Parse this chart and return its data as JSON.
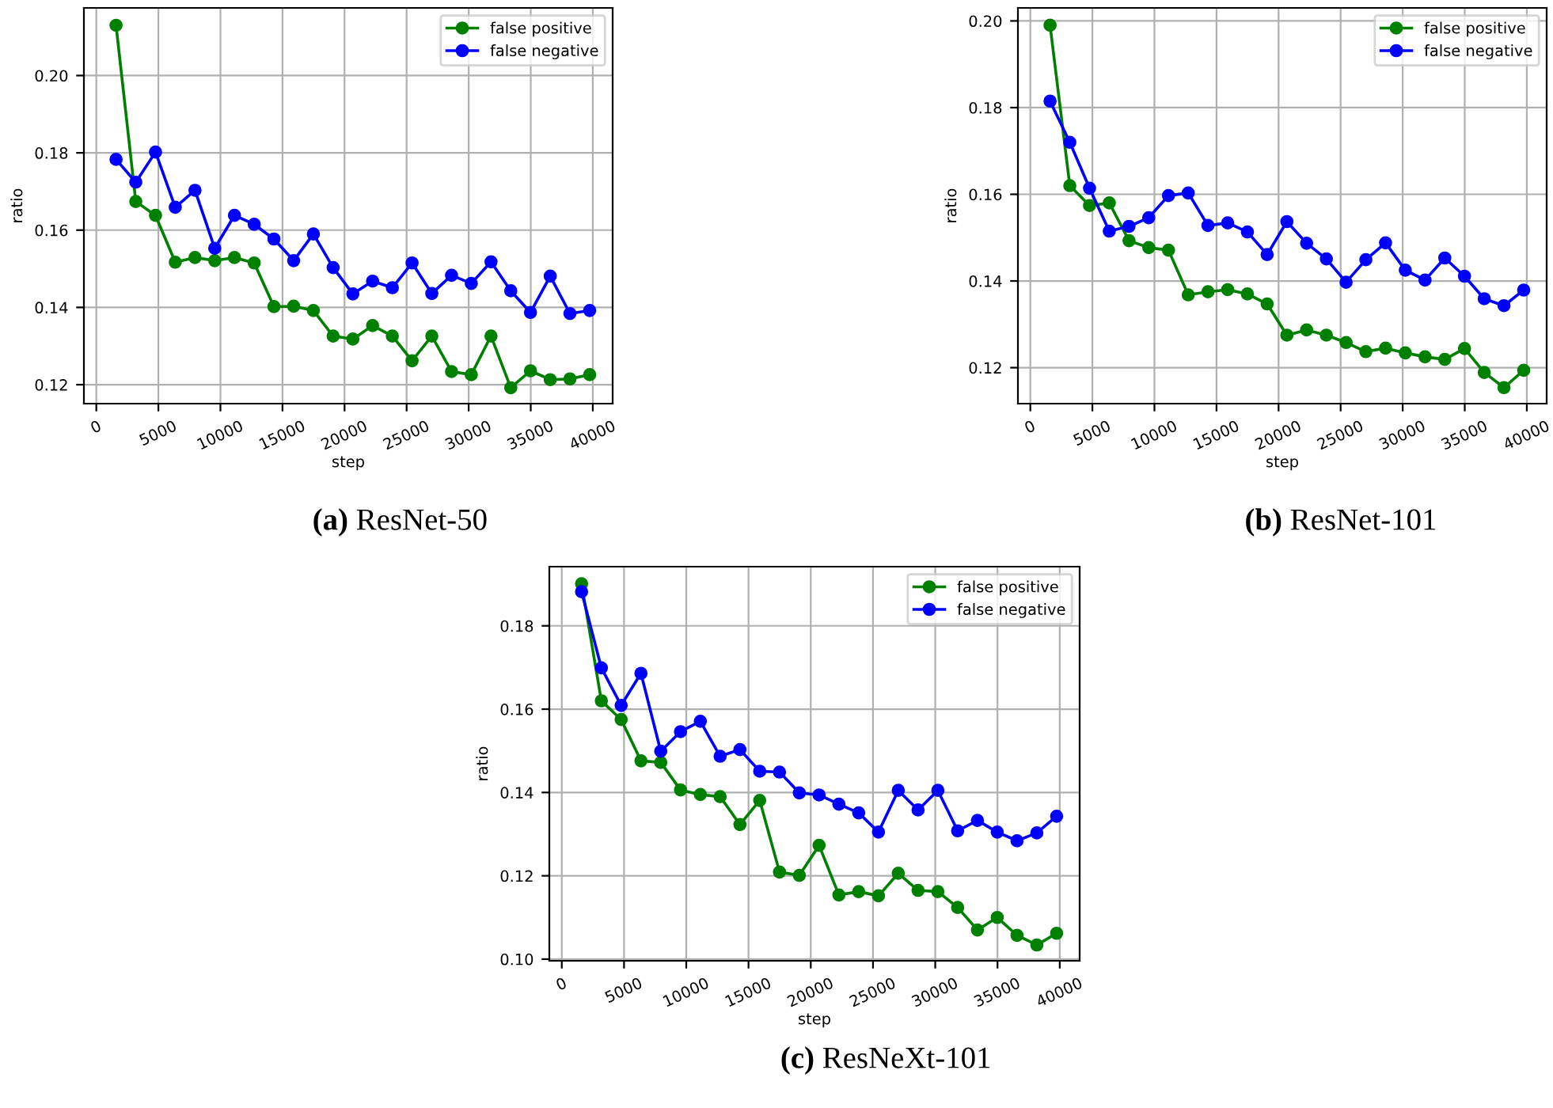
{
  "chart_data": [
    {
      "type": "line",
      "title": "(a) ResNet-50",
      "xlabel": "step",
      "ylabel": "ratio",
      "x": [
        1590,
        3180,
        4770,
        6360,
        7950,
        9540,
        11130,
        12720,
        14310,
        15900,
        17490,
        19080,
        20670,
        22260,
        23850,
        25440,
        27030,
        28620,
        30210,
        31800,
        33390,
        34980,
        36570,
        38160,
        39750
      ],
      "xlim": [
        -1000,
        41600
      ],
      "xticks": [
        0,
        5000,
        10000,
        15000,
        20000,
        25000,
        30000,
        35000,
        40000
      ],
      "ylim": [
        0.1151,
        0.2175
      ],
      "yticks": [
        {
          "value": 0.12,
          "label": "0.12"
        },
        {
          "value": 0.14,
          "label": "0.14"
        },
        {
          "value": 0.16,
          "label": "0.16"
        },
        {
          "value": 0.18,
          "label": "0.18"
        },
        {
          "value": 0.2,
          "label": "0.20"
        }
      ],
      "grid": true,
      "legend": "top right",
      "marker": "circle",
      "line_style": "solid",
      "series": [
        {
          "name": "false positive",
          "color": "#008000",
          "values": [
            0.213,
            0.1674,
            0.1638,
            0.1517,
            0.1529,
            0.1521,
            0.1529,
            0.1515,
            0.1402,
            0.1403,
            0.1392,
            0.1326,
            0.1318,
            0.1353,
            0.1326,
            0.1262,
            0.1326,
            0.1234,
            0.1226,
            0.1326,
            0.1192,
            0.1236,
            0.1213,
            0.1215,
            0.1226
          ]
        },
        {
          "name": "false negative",
          "color": "#0000ff",
          "values": [
            0.1783,
            0.1724,
            0.1802,
            0.1659,
            0.1703,
            0.1553,
            0.1638,
            0.1615,
            0.1577,
            0.1521,
            0.159,
            0.1503,
            0.1435,
            0.1468,
            0.1451,
            0.1515,
            0.1436,
            0.1483,
            0.1462,
            0.1518,
            0.1443,
            0.1387,
            0.1481,
            0.1384,
            0.1392
          ]
        }
      ]
    },
    {
      "type": "line",
      "title": "(b) ResNet-101",
      "xlabel": "step",
      "ylabel": "ratio",
      "x": [
        1590,
        3180,
        4770,
        6360,
        7950,
        9540,
        11130,
        12720,
        14310,
        15900,
        17490,
        19080,
        20670,
        22260,
        23850,
        25440,
        27030,
        28620,
        30210,
        31800,
        33390,
        34980,
        36570,
        38160,
        39750
      ],
      "xlim": [
        -1000,
        41600
      ],
      "xticks": [
        0,
        5000,
        10000,
        15000,
        20000,
        25000,
        30000,
        35000,
        40000
      ],
      "ylim": [
        0.1117,
        0.203
      ],
      "yticks": [
        {
          "value": 0.12,
          "label": "0.12"
        },
        {
          "value": 0.14,
          "label": "0.14"
        },
        {
          "value": 0.16,
          "label": "0.16"
        },
        {
          "value": 0.18,
          "label": "0.18"
        },
        {
          "value": 0.2,
          "label": "0.20"
        }
      ],
      "grid": true,
      "legend": "top right",
      "marker": "circle",
      "line_style": "solid",
      "series": [
        {
          "name": "false positive",
          "color": "#008000",
          "values": [
            0.199,
            0.162,
            0.1574,
            0.158,
            0.1493,
            0.1477,
            0.1471,
            0.1368,
            0.1375,
            0.138,
            0.137,
            0.1347,
            0.1275,
            0.1287,
            0.1275,
            0.1258,
            0.1237,
            0.1245,
            0.1234,
            0.1225,
            0.1219,
            0.1244,
            0.1189,
            0.1154,
            0.1194
          ]
        },
        {
          "name": "false negative",
          "color": "#0000ff",
          "values": [
            0.1815,
            0.172,
            0.1614,
            0.1515,
            0.1526,
            0.1546,
            0.1597,
            0.1603,
            0.1528,
            0.1534,
            0.1513,
            0.1461,
            0.1537,
            0.1487,
            0.1451,
            0.1397,
            0.1449,
            0.1488,
            0.1425,
            0.1402,
            0.1453,
            0.1411,
            0.1359,
            0.1343,
            0.1379
          ]
        }
      ]
    },
    {
      "type": "line",
      "title": "(c) ResNeXt-101",
      "xlabel": "step",
      "ylabel": "ratio",
      "x": [
        1590,
        3180,
        4770,
        6360,
        7950,
        9540,
        11130,
        12720,
        14310,
        15900,
        17490,
        19080,
        20670,
        22260,
        23850,
        25440,
        27030,
        28620,
        30210,
        31800,
        33390,
        34980,
        36570,
        38160,
        39750
      ],
      "xlim": [
        -1000,
        41600
      ],
      "xticks": [
        0,
        5000,
        10000,
        15000,
        20000,
        25000,
        30000,
        35000,
        40000
      ],
      "ylim": [
        0.0996,
        0.1942
      ],
      "yticks": [
        {
          "value": 0.1,
          "label": "0.10"
        },
        {
          "value": 0.12,
          "label": "0.12"
        },
        {
          "value": 0.14,
          "label": "0.14"
        },
        {
          "value": 0.16,
          "label": "0.16"
        },
        {
          "value": 0.18,
          "label": "0.18"
        }
      ],
      "grid": true,
      "legend": "top right",
      "marker": "circle",
      "line_style": "solid",
      "series": [
        {
          "name": "false positive",
          "color": "#008000",
          "values": [
            0.1901,
            0.162,
            0.1575,
            0.1476,
            0.1472,
            0.1406,
            0.1395,
            0.139,
            0.1323,
            0.1381,
            0.1209,
            0.1201,
            0.1273,
            0.1154,
            0.1162,
            0.1152,
            0.1206,
            0.1165,
            0.1162,
            0.1124,
            0.107,
            0.11,
            0.1057,
            0.1034,
            0.1062
          ]
        },
        {
          "name": "false negative",
          "color": "#0000ff",
          "values": [
            0.1882,
            0.1699,
            0.1609,
            0.1686,
            0.1499,
            0.1546,
            0.1571,
            0.1487,
            0.1503,
            0.1451,
            0.1449,
            0.1399,
            0.1394,
            0.1372,
            0.1351,
            0.1305,
            0.1405,
            0.1358,
            0.1405,
            0.1308,
            0.1333,
            0.1305,
            0.1284,
            0.1303,
            0.1343
          ]
        }
      ]
    }
  ]
}
